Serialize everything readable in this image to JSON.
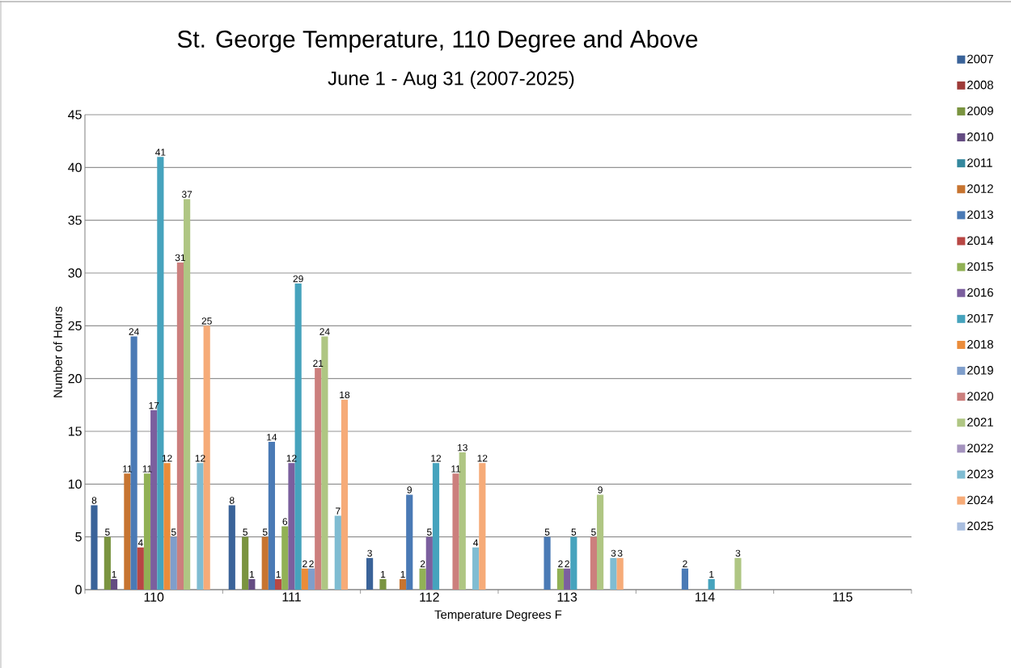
{
  "chart_data": {
    "type": "bar",
    "title": "St. George Temperature, 110 Degree and Above",
    "subtitle": "June 1 - Aug 31 (2007-2025)",
    "xlabel": "Temperature Degrees F",
    "ylabel": "Number of Hours",
    "categories": [
      "110",
      "111",
      "112",
      "113",
      "114",
      "115"
    ],
    "ylim": [
      0,
      45
    ],
    "yticks": [
      0,
      5,
      10,
      15,
      20,
      25,
      30,
      35,
      40,
      45
    ],
    "grid": "y",
    "legend": "right",
    "series": [
      {
        "name": "2007",
        "color": "#3a6399",
        "values": [
          8,
          8,
          3,
          0,
          0,
          0
        ],
        "value_labels": [
          "8",
          "8",
          "3",
          null,
          null,
          null
        ]
      },
      {
        "name": "2008",
        "color": "#9e3b38",
        "values": [
          0,
          0,
          0,
          0,
          0,
          0
        ],
        "value_labels": [
          null,
          null,
          null,
          null,
          null,
          null
        ]
      },
      {
        "name": "2009",
        "color": "#7a9440",
        "values": [
          5,
          5,
          1,
          0,
          0,
          0
        ],
        "value_labels": [
          "5",
          "5",
          "1",
          null,
          null,
          null
        ]
      },
      {
        "name": "2010",
        "color": "#644c82",
        "values": [
          1,
          1,
          0,
          0,
          0,
          0
        ],
        "value_labels": [
          "1",
          "1",
          null,
          null,
          null,
          null
        ]
      },
      {
        "name": "2011",
        "color": "#34889e",
        "values": [
          0,
          0,
          0,
          0,
          0,
          0
        ],
        "value_labels": [
          null,
          null,
          null,
          null,
          null,
          null
        ]
      },
      {
        "name": "2012",
        "color": "#c77430",
        "values": [
          11,
          5,
          1,
          0,
          0,
          0
        ],
        "value_labels": [
          "11",
          "5",
          "1",
          null,
          null,
          null
        ]
      },
      {
        "name": "2013",
        "color": "#4a7ab5",
        "values": [
          24,
          14,
          9,
          5,
          2,
          0
        ],
        "value_labels": [
          "24",
          "14",
          "9",
          "5",
          "2",
          null
        ]
      },
      {
        "name": "2014",
        "color": "#b84744",
        "values": [
          4,
          1,
          0,
          0,
          0,
          0
        ],
        "value_labels": [
          "4",
          "1",
          null,
          null,
          null,
          null
        ]
      },
      {
        "name": "2015",
        "color": "#91b155",
        "values": [
          11,
          6,
          2,
          2,
          0,
          0
        ],
        "value_labels": [
          "11",
          "6",
          "2",
          "2",
          null,
          null
        ]
      },
      {
        "name": "2016",
        "color": "#7b5f9e",
        "values": [
          17,
          12,
          5,
          2,
          0,
          0
        ],
        "value_labels": [
          "17",
          "12",
          "5",
          "2",
          null,
          null
        ]
      },
      {
        "name": "2017",
        "color": "#46a3bd",
        "values": [
          41,
          29,
          12,
          5,
          1,
          0
        ],
        "value_labels": [
          "41",
          "29",
          "12",
          "5",
          "1",
          null
        ]
      },
      {
        "name": "2018",
        "color": "#eb8c3a",
        "values": [
          12,
          2,
          0,
          0,
          0,
          0
        ],
        "value_labels": [
          "12",
          "2",
          null,
          null,
          null,
          null
        ]
      },
      {
        "name": "2019",
        "color": "#7f9ecb",
        "values": [
          5,
          2,
          0,
          0,
          0,
          0
        ],
        "value_labels": [
          "5",
          "2",
          null,
          null,
          null,
          null
        ]
      },
      {
        "name": "2020",
        "color": "#cc7f7d",
        "values": [
          31,
          21,
          11,
          5,
          0,
          0
        ],
        "value_labels": [
          "31",
          "21",
          "11",
          "5",
          null,
          null
        ]
      },
      {
        "name": "2021",
        "color": "#afc683",
        "values": [
          37,
          24,
          13,
          9,
          3,
          0
        ],
        "value_labels": [
          "37",
          "24",
          "13",
          "9",
          "3",
          null
        ]
      },
      {
        "name": "2022",
        "color": "#a493be",
        "values": [
          0,
          0,
          0,
          0,
          0,
          0
        ],
        "value_labels": [
          null,
          null,
          null,
          null,
          null,
          null
        ]
      },
      {
        "name": "2023",
        "color": "#7fbcd2",
        "values": [
          12,
          7,
          4,
          3,
          0,
          0
        ],
        "value_labels": [
          "12",
          "7",
          "4",
          "3",
          null,
          null
        ]
      },
      {
        "name": "2024",
        "color": "#f6ab78",
        "values": [
          25,
          18,
          12,
          3,
          0,
          0
        ],
        "value_labels": [
          "25",
          "18",
          "12",
          "3",
          null,
          null
        ]
      },
      {
        "name": "2025",
        "color": "#a9bedf",
        "values": [
          0,
          0,
          0,
          0,
          0,
          0
        ],
        "value_labels": [
          null,
          null,
          null,
          null,
          null,
          null
        ]
      }
    ]
  }
}
